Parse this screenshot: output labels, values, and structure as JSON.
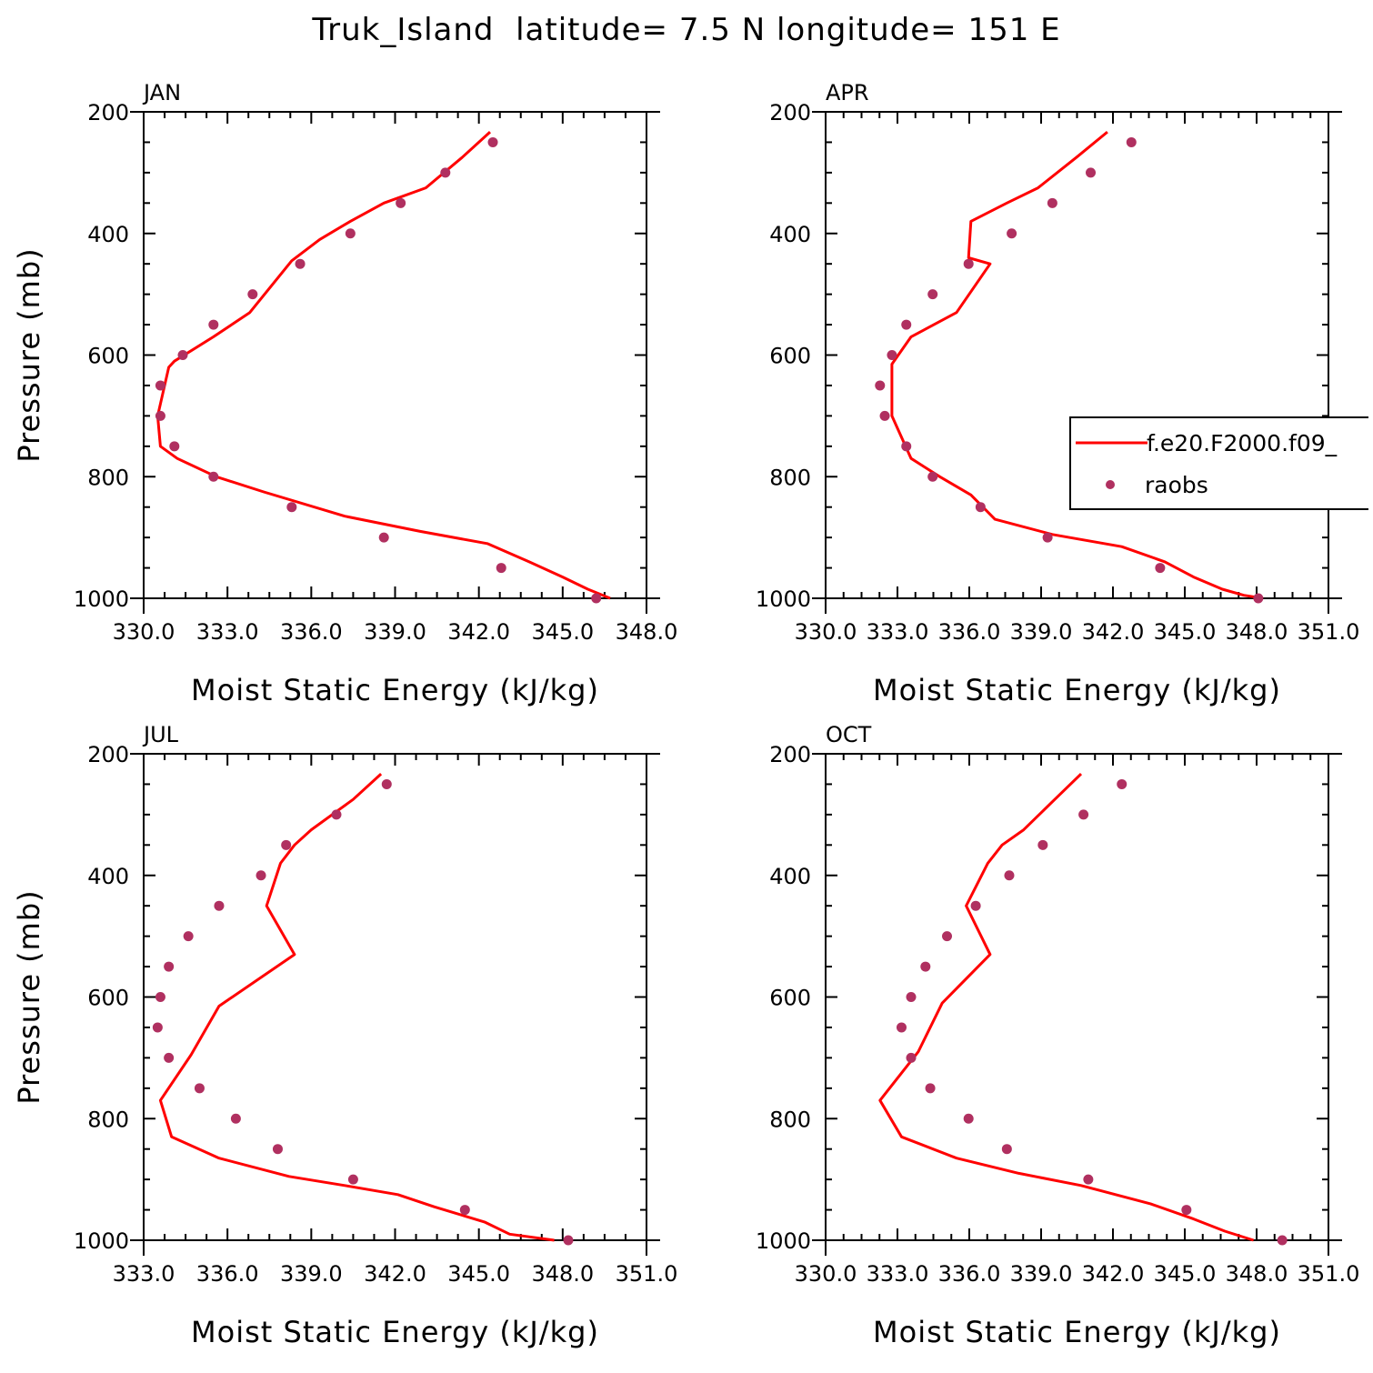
{
  "figure_title": "Truk_Island  latitude= 7.5 N longitude= 151 E",
  "legend": {
    "line_label": "f.e20.F2000.f09_",
    "marker_label": "raobs"
  },
  "colors": {
    "model_line": "#ff0000",
    "obs_marker": "#b03060",
    "axes": "#000000"
  },
  "chart_data": [
    {
      "type": "line",
      "panel": "JAN",
      "title": "JAN",
      "xlabel": "Moist Static Energy (kJ/kg)",
      "ylabel": "Pressure (mb)",
      "xlim": [
        330,
        348
      ],
      "ylim": [
        1000,
        200
      ],
      "xticks": [
        330,
        333,
        336,
        339,
        342,
        345,
        348
      ],
      "xtick_labels": [
        "330.0",
        "333.0",
        "336.0",
        "339.0",
        "342.0",
        "345.0",
        "348.0"
      ],
      "yticks": [
        200,
        400,
        600,
        800,
        1000
      ],
      "ytick_labels": [
        "200",
        "400",
        "600",
        "800",
        "1000"
      ],
      "series": [
        {
          "name": "f.e20.F2000.f09_",
          "style": "line",
          "x": [
            342.4,
            341.4,
            340.1,
            338.6,
            337.4,
            336.3,
            335.3,
            333.8,
            332.5,
            331.1,
            330.9,
            330.5,
            330.6,
            331.2,
            332.6,
            334.3,
            337.2,
            339.9,
            342.3,
            343.8,
            345.0,
            345.9,
            346.7
          ],
          "y": [
            233,
            275,
            325,
            350,
            380,
            410,
            445,
            530,
            570,
            610,
            620,
            700,
            750,
            770,
            800,
            825,
            865,
            890,
            910,
            940,
            965,
            985,
            1000
          ]
        },
        {
          "name": "raobs",
          "style": "marker",
          "x": [
            342.5,
            340.8,
            339.2,
            337.4,
            335.6,
            333.9,
            332.5,
            331.4,
            330.6,
            330.6,
            331.1,
            332.5,
            335.3,
            338.6,
            342.8,
            346.2
          ],
          "y": [
            250,
            300,
            350,
            400,
            450,
            500,
            550,
            600,
            650,
            700,
            750,
            800,
            850,
            900,
            950,
            1000
          ]
        }
      ]
    },
    {
      "type": "line",
      "panel": "APR",
      "title": "APR",
      "xlabel": "Moist Static Energy (kJ/kg)",
      "ylabel": "",
      "xlim": [
        330.03,
        351.03
      ],
      "ylim": [
        1000,
        200
      ],
      "xticks": [
        330.03,
        333.03,
        336.03,
        339.03,
        342.03,
        345.03,
        348.03,
        351.03
      ],
      "xtick_labels": [
        "330.0",
        "333.0",
        "336.0",
        "339.0",
        "342.0",
        "345.0",
        "348.0",
        "351.0"
      ],
      "yticks": [
        200,
        400,
        600,
        800,
        1000
      ],
      "ytick_labels": [
        "200",
        "400",
        "600",
        "800",
        "1000"
      ],
      "series": [
        {
          "name": "f.e20.F2000.f09_",
          "style": "line",
          "x": [
            341.8,
            340.5,
            338.9,
            337.6,
            336.1,
            336.0,
            336.9,
            335.5,
            333.6,
            332.8,
            332.8,
            333.6,
            334.8,
            336.1,
            337.1,
            339.5,
            342.4,
            344.2,
            345.4,
            346.6,
            347.5,
            348.3
          ],
          "y": [
            233,
            275,
            325,
            350,
            380,
            440,
            450,
            530,
            570,
            615,
            700,
            770,
            800,
            830,
            870,
            895,
            915,
            940,
            965,
            985,
            995,
            1000
          ]
        },
        {
          "name": "raobs",
          "style": "marker",
          "x": [
            342.8,
            341.1,
            339.5,
            337.8,
            336.0,
            334.5,
            333.4,
            332.8,
            332.3,
            332.5,
            333.4,
            334.5,
            336.5,
            339.3,
            344.0,
            348.1
          ],
          "y": [
            250,
            300,
            350,
            400,
            450,
            500,
            550,
            600,
            650,
            700,
            750,
            800,
            850,
            900,
            950,
            1000
          ]
        }
      ]
    },
    {
      "type": "line",
      "panel": "JUL",
      "title": "JUL",
      "xlabel": "Moist Static Energy (kJ/kg)",
      "ylabel": "Pressure (mb)",
      "xlim": [
        333,
        351
      ],
      "ylim": [
        1000,
        200
      ],
      "xticks": [
        333,
        336,
        339,
        342,
        345,
        348,
        351
      ],
      "xtick_labels": [
        "333.0",
        "336.0",
        "339.0",
        "342.0",
        "345.0",
        "348.0",
        "351.0"
      ],
      "yticks": [
        200,
        400,
        600,
        800,
        1000
      ],
      "ytick_labels": [
        "200",
        "400",
        "600",
        "800",
        "1000"
      ],
      "series": [
        {
          "name": "f.e20.F2000.f09_",
          "style": "line",
          "x": [
            341.5,
            340.5,
            339.0,
            338.4,
            337.9,
            337.4,
            338.4,
            335.7,
            334.7,
            333.6,
            334.0,
            335.7,
            338.2,
            340.2,
            342.1,
            343.4,
            345.2,
            346.1,
            347.7
          ],
          "y": [
            233,
            275,
            325,
            350,
            380,
            450,
            530,
            615,
            695,
            770,
            830,
            865,
            895,
            910,
            925,
            945,
            970,
            990,
            1000
          ]
        },
        {
          "name": "raobs",
          "style": "marker",
          "x": [
            341.7,
            339.9,
            338.1,
            337.2,
            335.7,
            334.6,
            333.9,
            333.6,
            333.5,
            333.9,
            335.0,
            336.3,
            337.8,
            340.5,
            344.5,
            348.2
          ],
          "y": [
            250,
            300,
            350,
            400,
            450,
            500,
            550,
            600,
            650,
            700,
            750,
            800,
            850,
            900,
            950,
            1000
          ]
        }
      ]
    },
    {
      "type": "line",
      "panel": "OCT",
      "title": "OCT",
      "xlabel": "Moist Static Energy (kJ/kg)",
      "ylabel": "",
      "xlim": [
        330.03,
        351.03
      ],
      "ylim": [
        1000,
        200
      ],
      "xticks": [
        330.03,
        333.03,
        336.03,
        339.03,
        342.03,
        345.03,
        348.03,
        351.03
      ],
      "xtick_labels": [
        "330.0",
        "333.0",
        "336.0",
        "339.0",
        "342.0",
        "345.0",
        "348.0",
        "351.0"
      ],
      "yticks": [
        200,
        400,
        600,
        800,
        1000
      ],
      "ytick_labels": [
        "200",
        "400",
        "600",
        "800",
        "1000"
      ],
      "series": [
        {
          "name": "f.e20.F2000.f09_",
          "style": "line",
          "x": [
            340.7,
            339.6,
            338.3,
            337.4,
            336.8,
            335.9,
            336.9,
            334.9,
            333.9,
            332.3,
            333.2,
            335.5,
            338.1,
            340.7,
            343.6,
            345.4,
            346.7,
            347.9
          ],
          "y": [
            233,
            275,
            325,
            350,
            380,
            450,
            530,
            610,
            690,
            770,
            830,
            865,
            890,
            910,
            940,
            965,
            985,
            1000
          ]
        },
        {
          "name": "raobs",
          "style": "marker",
          "x": [
            342.4,
            340.8,
            339.1,
            337.7,
            336.3,
            335.1,
            334.2,
            333.6,
            333.2,
            333.6,
            334.4,
            336.0,
            337.6,
            341.0,
            345.1,
            349.1
          ],
          "y": [
            250,
            300,
            350,
            400,
            450,
            500,
            550,
            600,
            650,
            700,
            750,
            800,
            850,
            900,
            950,
            1000
          ]
        }
      ]
    }
  ]
}
